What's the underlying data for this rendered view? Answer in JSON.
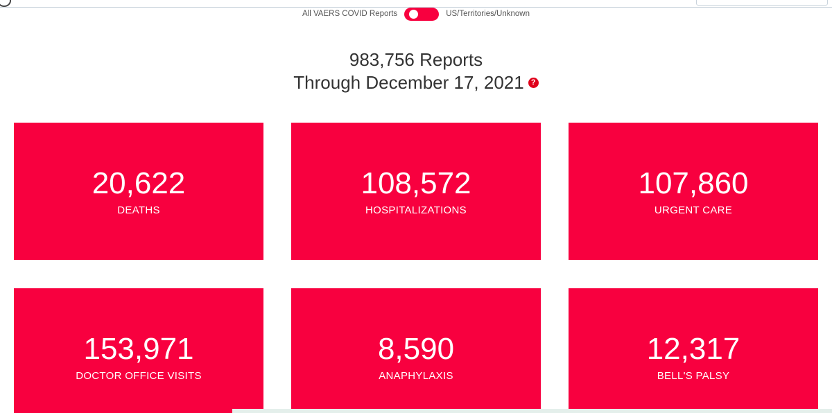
{
  "toggle": {
    "left_label": "All VAERS COVID Reports",
    "right_label": "US/Territories/Unknown",
    "state": "on",
    "color": "#f8003f"
  },
  "headline": {
    "reports": "983,756 Reports",
    "through": "Through December 17, 2021",
    "help_icon": "?"
  },
  "cards": [
    {
      "value": "20,622",
      "label": "DEATHS"
    },
    {
      "value": "108,572",
      "label": "HOSPITALIZATIONS"
    },
    {
      "value": "107,860",
      "label": "URGENT CARE"
    },
    {
      "value": "153,971",
      "label": "DOCTOR OFFICE VISITS"
    },
    {
      "value": "8,590",
      "label": "ANAPHYLAXIS"
    },
    {
      "value": "12,317",
      "label": "BELL'S PALSY"
    }
  ],
  "colors": {
    "card_background": "#f8003f",
    "card_text": "#ffffff",
    "help_icon": "#e0001b"
  }
}
